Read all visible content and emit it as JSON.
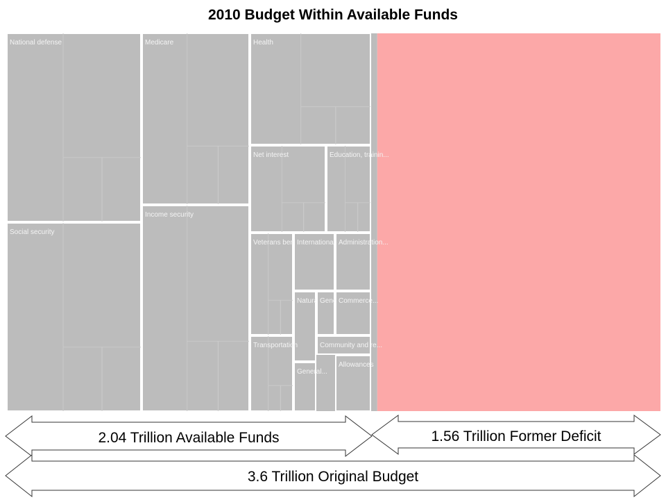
{
  "title": "2010 Budget Within Available Funds",
  "colors": {
    "funded": "#bcbcbc",
    "deficit": "#fca8a8",
    "cell_border": "#ffffff",
    "arrow_stroke": "#333333"
  },
  "chart_data": {
    "type": "treemap",
    "title": "2010 Budget Within Available Funds",
    "unit": "Trillion",
    "original_budget": 3.6,
    "available_funds": 2.04,
    "former_deficit": 1.56,
    "categories": [
      {
        "label": "National defense"
      },
      {
        "label": "Social security"
      },
      {
        "label": "Medicare"
      },
      {
        "label": "Income security"
      },
      {
        "label": "Health"
      },
      {
        "label": "Net interest"
      },
      {
        "label": "Education, trainin..."
      },
      {
        "label": "Veterans benefit..."
      },
      {
        "label": "International aff..."
      },
      {
        "label": "Administration..."
      },
      {
        "label": "Natural..."
      },
      {
        "label": "General..."
      },
      {
        "label": "Commerce..."
      },
      {
        "label": "Transportation"
      },
      {
        "label": "Community and re..."
      },
      {
        "label": "General..."
      },
      {
        "label": "Allowances"
      }
    ],
    "deficit_label": "Former Deficit"
  },
  "arrows": {
    "available": "2.04 Trillion Available Funds",
    "deficit": "1.56 Trillion Former Deficit",
    "original": "3.6 Trillion Original Budget"
  }
}
